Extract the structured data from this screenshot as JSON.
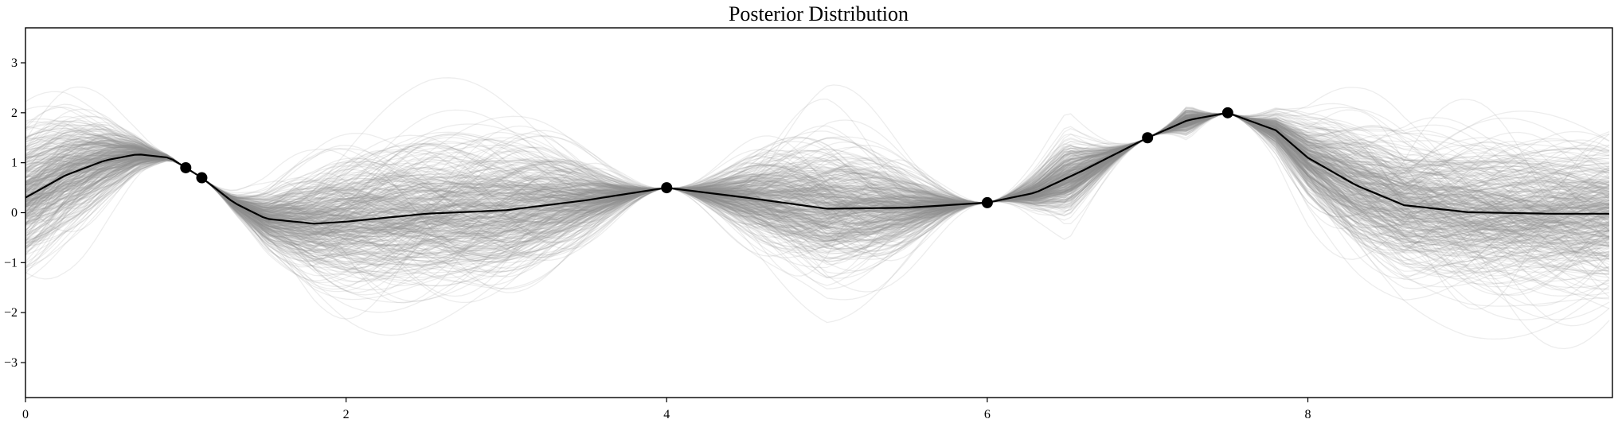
{
  "chart_data": {
    "type": "line",
    "title": "Posterior Distribution",
    "xlabel": "",
    "ylabel": "",
    "xlim": [
      0,
      9.9
    ],
    "ylim": [
      -3.7,
      3.7
    ],
    "x_ticks": [
      0,
      2,
      4,
      6,
      8
    ],
    "y_ticks": [
      -3,
      -2,
      -1,
      0,
      1,
      2,
      3
    ],
    "x_tick_labels": [
      "0",
      "2",
      "4",
      "6",
      "8"
    ],
    "y_tick_labels": [
      "−3",
      "−2",
      "−1",
      "0",
      "1",
      "2",
      "3"
    ],
    "grid": false,
    "legend": "none",
    "observations": {
      "x": [
        1.0,
        1.1,
        4.0,
        6.0,
        7.0,
        7.5
      ],
      "y": [
        0.9,
        0.7,
        0.5,
        0.2,
        1.5,
        2.0
      ]
    },
    "posterior_mean": {
      "x": [
        0,
        0.25,
        0.5,
        0.7,
        0.9,
        1.0,
        1.1,
        1.3,
        1.5,
        1.8,
        2.0,
        2.5,
        3.0,
        3.5,
        4.0,
        4.5,
        5.0,
        5.5,
        6.0,
        6.3,
        6.6,
        7.0,
        7.25,
        7.5,
        7.8,
        8.0,
        8.3,
        8.6,
        9.0,
        9.5,
        9.9
      ],
      "y": [
        0.3,
        0.75,
        1.05,
        1.17,
        1.1,
        0.9,
        0.7,
        0.2,
        -0.12,
        -0.22,
        -0.18,
        -0.02,
        0.05,
        0.25,
        0.5,
        0.3,
        0.08,
        0.1,
        0.2,
        0.4,
        0.85,
        1.5,
        1.85,
        2.0,
        1.65,
        1.1,
        0.55,
        0.15,
        0.01,
        -0.02,
        -0.02
      ]
    },
    "posterior_samples": 400,
    "colors": {
      "samples": "#8c8c8c",
      "mean": "#000000",
      "points": "#000000"
    }
  }
}
